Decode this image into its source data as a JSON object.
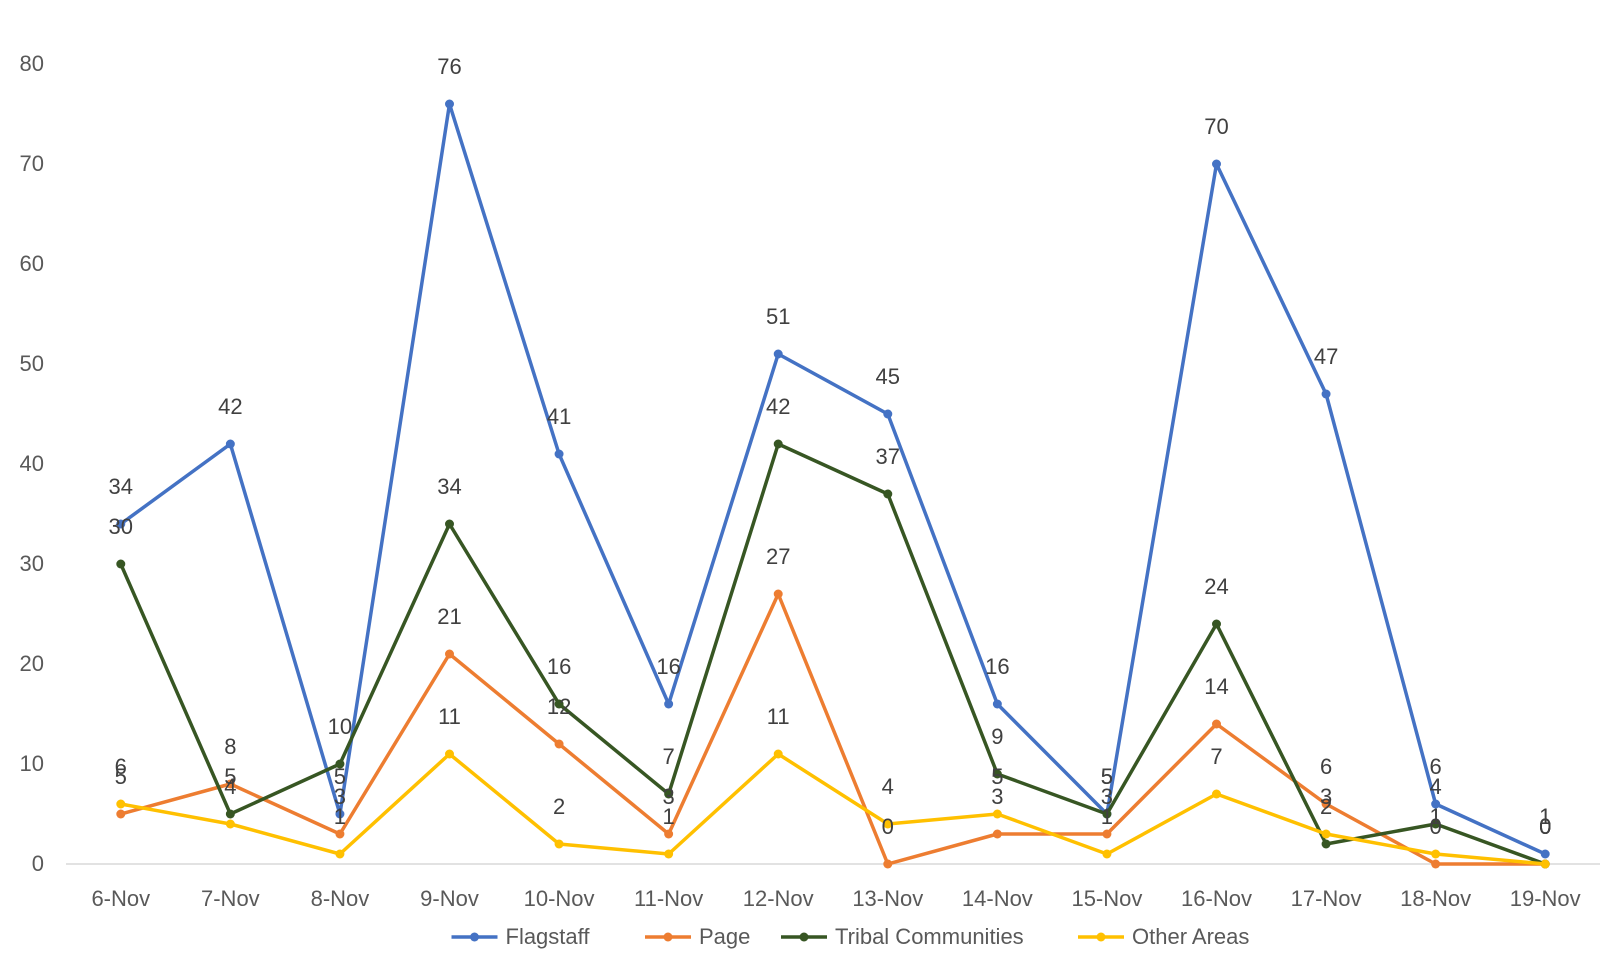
{
  "chart_data": {
    "type": "line",
    "title": "",
    "xlabel": "",
    "ylabel": "",
    "ylim": [
      0,
      80
    ],
    "yticks": [
      0,
      10,
      20,
      30,
      40,
      50,
      60,
      70,
      80
    ],
    "grid": false,
    "legend_position": "bottom",
    "categories": [
      "6-Nov",
      "7-Nov",
      "8-Nov",
      "9-Nov",
      "10-Nov",
      "11-Nov",
      "12-Nov",
      "13-Nov",
      "14-Nov",
      "15-Nov",
      "16-Nov",
      "17-Nov",
      "18-Nov",
      "19-Nov"
    ],
    "series": [
      {
        "name": "Flagstaff",
        "color": "#4472C4",
        "values": [
          34,
          42,
          5,
          76,
          41,
          16,
          51,
          45,
          16,
          5,
          70,
          47,
          6,
          1
        ]
      },
      {
        "name": "Page",
        "color": "#ED7D31",
        "values": [
          5,
          8,
          3,
          21,
          12,
          3,
          27,
          0,
          3,
          3,
          14,
          6,
          0,
          0
        ]
      },
      {
        "name": "Tribal Communities",
        "color": "#375623",
        "values": [
          30,
          5,
          10,
          34,
          16,
          7,
          42,
          37,
          9,
          5,
          24,
          2,
          4,
          0
        ]
      },
      {
        "name": "Other Areas",
        "color": "#FFC000",
        "values": [
          6,
          4,
          1,
          11,
          2,
          1,
          11,
          4,
          5,
          1,
          7,
          3,
          1,
          0
        ]
      }
    ]
  }
}
